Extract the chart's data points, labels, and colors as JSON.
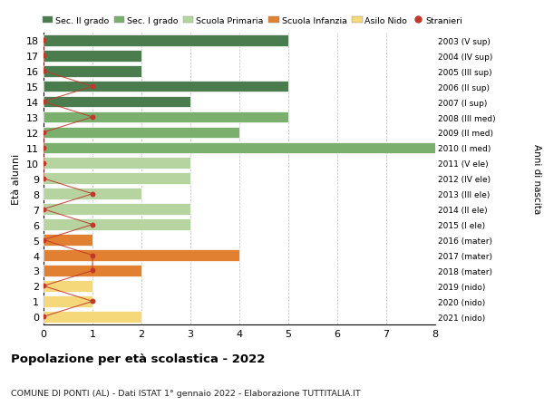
{
  "ages": [
    18,
    17,
    16,
    15,
    14,
    13,
    12,
    11,
    10,
    9,
    8,
    7,
    6,
    5,
    4,
    3,
    2,
    1,
    0
  ],
  "years": [
    "2003 (V sup)",
    "2004 (IV sup)",
    "2005 (III sup)",
    "2006 (II sup)",
    "2007 (I sup)",
    "2008 (III med)",
    "2009 (II med)",
    "2010 (I med)",
    "2011 (V ele)",
    "2012 (IV ele)",
    "2013 (III ele)",
    "2014 (II ele)",
    "2015 (I ele)",
    "2016 (mater)",
    "2017 (mater)",
    "2018 (mater)",
    "2019 (nido)",
    "2020 (nido)",
    "2021 (nido)"
  ],
  "bar_values": [
    5,
    2,
    2,
    5,
    3,
    5,
    4,
    8,
    3,
    3,
    2,
    3,
    3,
    1,
    4,
    2,
    1,
    1,
    2
  ],
  "stranieri_values": [
    0,
    0,
    0,
    1,
    0,
    1,
    0,
    0,
    0,
    0,
    1,
    0,
    1,
    0,
    1,
    1,
    0,
    1,
    0
  ],
  "bar_colors": [
    "#4a7c4e",
    "#4a7c4e",
    "#4a7c4e",
    "#4a7c4e",
    "#4a7c4e",
    "#7aaf6e",
    "#7aaf6e",
    "#7aaf6e",
    "#b5d4a0",
    "#b5d4a0",
    "#b5d4a0",
    "#b5d4a0",
    "#b5d4a0",
    "#e08030",
    "#e08030",
    "#e08030",
    "#f5d87a",
    "#f5d87a",
    "#f5d87a"
  ],
  "legend_labels": [
    "Sec. II grado",
    "Sec. I grado",
    "Scuola Primaria",
    "Scuola Infanzia",
    "Asilo Nido",
    "Stranieri"
  ],
  "legend_colors": [
    "#4a7c4e",
    "#7aaf6e",
    "#b5d4a0",
    "#e08030",
    "#f5d87a",
    "#c0392b"
  ],
  "title": "Popolazione per età scolastica - 2022",
  "subtitle": "COMUNE DI PONTI (AL) - Dati ISTAT 1° gennaio 2022 - Elaborazione TUTTITALIA.IT",
  "ylabel": "Età alunni",
  "right_label": "Anni di nascita",
  "xlim": [
    0,
    8
  ],
  "xticks": [
    0,
    1,
    2,
    3,
    4,
    5,
    6,
    7,
    8
  ],
  "stranieri_color": "#c0392b",
  "line_color": "#c0392b",
  "background_color": "#ffffff",
  "bar_height": 0.75
}
